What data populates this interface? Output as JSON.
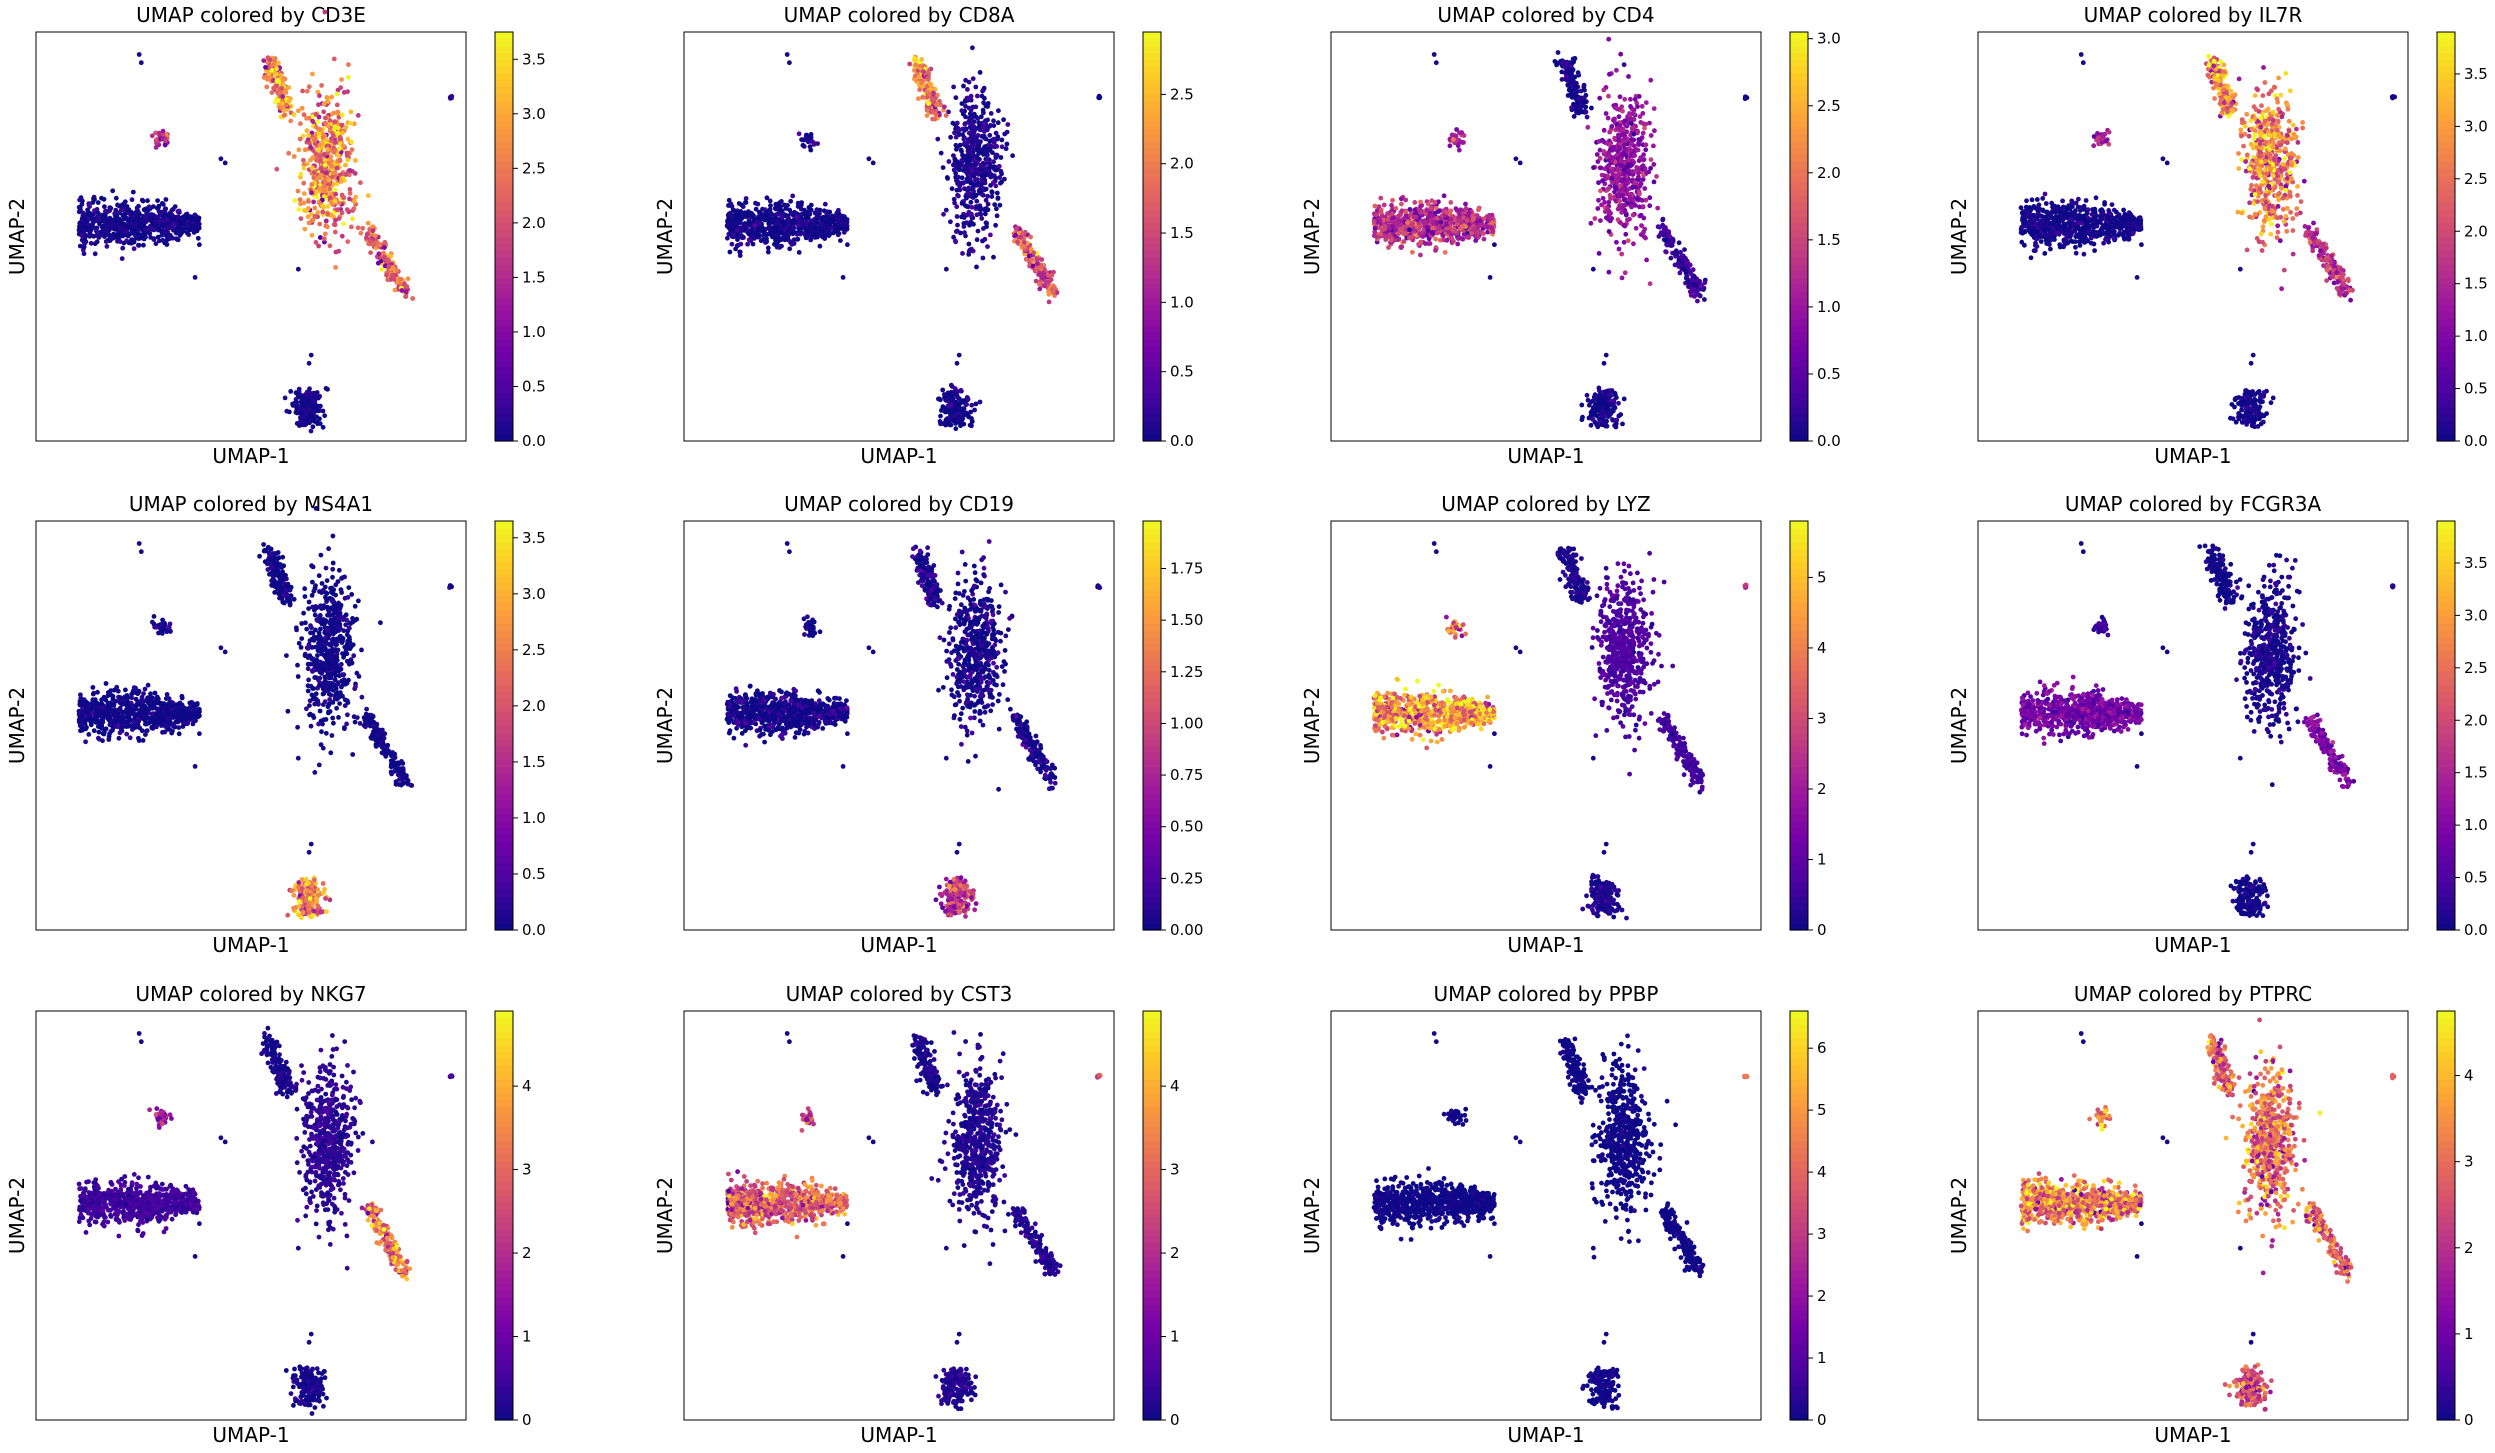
{
  "figure": {
    "x_axis_label": "UMAP-1",
    "y_axis_label": "UMAP-2",
    "colormap": "plasma",
    "colormap_stops": [
      "#0d0887",
      "#46039f",
      "#7201a8",
      "#9c179e",
      "#bd3786",
      "#d8576b",
      "#ed7953",
      "#fb9f3a",
      "#fdca26",
      "#f0f921"
    ]
  },
  "chart_data": [
    {
      "type": "scatter",
      "title": "UMAP colored by CD3E",
      "xlabel": "UMAP-1",
      "ylabel": "UMAP-2",
      "colorbar": {
        "range": [
          0,
          3.75
        ],
        "ticks": [
          "0.0",
          "0.5",
          "1.0",
          "1.5",
          "2.0",
          "2.5",
          "3.0",
          "3.5"
        ],
        "tick_values": [
          0,
          0.5,
          1,
          1.5,
          2,
          2.5,
          3,
          3.5
        ]
      },
      "expression": {
        "monocyte_cluster": 0.05,
        "t_cluster_upper": 2.6,
        "t_cluster_lower": 2.3,
        "b_cluster": 0.05,
        "top_cluster": 2.8,
        "small_cluster": 1.5,
        "platelet": 0.2
      }
    },
    {
      "type": "scatter",
      "title": "UMAP colored by CD8A",
      "xlabel": "UMAP-1",
      "ylabel": "UMAP-2",
      "colorbar": {
        "range": [
          0,
          2.95
        ],
        "ticks": [
          "0.0",
          "0.5",
          "1.0",
          "1.5",
          "2.0",
          "2.5"
        ],
        "tick_values": [
          0,
          0.5,
          1,
          1.5,
          2,
          2.5
        ]
      },
      "expression": {
        "monocyte_cluster": 0.0,
        "t_cluster_upper": 0.1,
        "t_cluster_lower": 1.6,
        "b_cluster": 0.0,
        "top_cluster": 2.0,
        "small_cluster": 0.1,
        "platelet": 0.0
      }
    },
    {
      "type": "scatter",
      "title": "UMAP colored by CD4",
      "xlabel": "UMAP-1",
      "ylabel": "UMAP-2",
      "colorbar": {
        "range": [
          0,
          3.05
        ],
        "ticks": [
          "0.0",
          "0.5",
          "1.0",
          "1.5",
          "2.0",
          "2.5",
          "3.0"
        ],
        "tick_values": [
          0,
          0.5,
          1,
          1.5,
          2,
          2.5,
          3
        ]
      },
      "expression": {
        "monocyte_cluster": 1.3,
        "t_cluster_upper": 0.9,
        "t_cluster_lower": 0.3,
        "b_cluster": 0.0,
        "top_cluster": 0.0,
        "small_cluster": 1.2,
        "platelet": 0.0
      }
    },
    {
      "type": "scatter",
      "title": "UMAP colored by IL7R",
      "xlabel": "UMAP-1",
      "ylabel": "UMAP-2",
      "colorbar": {
        "range": [
          0,
          3.9
        ],
        "ticks": [
          "0.0",
          "0.5",
          "1.0",
          "1.5",
          "2.0",
          "2.5",
          "3.0",
          "3.5"
        ],
        "tick_values": [
          0,
          0.5,
          1,
          1.5,
          2,
          2.5,
          3,
          3.5
        ]
      },
      "expression": {
        "monocyte_cluster": 0.05,
        "t_cluster_upper": 2.6,
        "t_cluster_lower": 1.6,
        "b_cluster": 0.05,
        "top_cluster": 2.8,
        "small_cluster": 1.3,
        "platelet": 0.1
      }
    },
    {
      "type": "scatter",
      "title": "UMAP colored by MS4A1",
      "xlabel": "UMAP-1",
      "ylabel": "UMAP-2",
      "colorbar": {
        "range": [
          0,
          3.65
        ],
        "ticks": [
          "0.0",
          "0.5",
          "1.0",
          "1.5",
          "2.0",
          "2.5",
          "3.0",
          "3.5"
        ],
        "tick_values": [
          0,
          0.5,
          1,
          1.5,
          2,
          2.5,
          3,
          3.5
        ]
      },
      "expression": {
        "monocyte_cluster": 0.0,
        "t_cluster_upper": 0.0,
        "t_cluster_lower": 0.0,
        "b_cluster": 2.5,
        "top_cluster": 0.0,
        "small_cluster": 0.0,
        "platelet": 0.0
      }
    },
    {
      "type": "scatter",
      "title": "UMAP colored by CD19",
      "xlabel": "UMAP-1",
      "ylabel": "UMAP-2",
      "colorbar": {
        "range": [
          0,
          1.98
        ],
        "ticks": [
          "0.00",
          "0.25",
          "0.50",
          "0.75",
          "1.00",
          "1.25",
          "1.50",
          "1.75"
        ],
        "tick_values": [
          0,
          0.25,
          0.5,
          0.75,
          1,
          1.25,
          1.5,
          1.75
        ]
      },
      "expression": {
        "monocyte_cluster": 0.0,
        "t_cluster_upper": 0.0,
        "t_cluster_lower": 0.0,
        "b_cluster": 0.9,
        "top_cluster": 0.0,
        "small_cluster": 0.0,
        "platelet": 0.0
      }
    },
    {
      "type": "scatter",
      "title": "UMAP colored by LYZ",
      "xlabel": "UMAP-1",
      "ylabel": "UMAP-2",
      "colorbar": {
        "range": [
          0,
          5.8
        ],
        "ticks": [
          "0",
          "1",
          "2",
          "3",
          "4",
          "5"
        ],
        "tick_values": [
          0,
          1,
          2,
          3,
          4,
          5
        ]
      },
      "expression": {
        "monocyte_cluster": 4.4,
        "t_cluster_upper": 0.8,
        "t_cluster_lower": 0.6,
        "b_cluster": 0.2,
        "top_cluster": 0.2,
        "small_cluster": 3.5,
        "platelet": 2.5
      }
    },
    {
      "type": "scatter",
      "title": "UMAP colored by FCGR3A",
      "xlabel": "UMAP-1",
      "ylabel": "UMAP-2",
      "colorbar": {
        "range": [
          0,
          3.9
        ],
        "ticks": [
          "0.0",
          "0.5",
          "1.0",
          "1.5",
          "2.0",
          "2.5",
          "3.0",
          "3.5"
        ],
        "tick_values": [
          0,
          0.5,
          1,
          1.5,
          2,
          2.5,
          3,
          3.5
        ]
      },
      "expression": {
        "monocyte_cluster": 0.9,
        "t_cluster_upper": 0.1,
        "t_cluster_lower": 1.0,
        "b_cluster": 0.0,
        "top_cluster": 0.0,
        "small_cluster": 0.3,
        "platelet": 0.0
      }
    },
    {
      "type": "scatter",
      "title": "UMAP colored by NKG7",
      "xlabel": "UMAP-1",
      "ylabel": "UMAP-2",
      "colorbar": {
        "range": [
          0,
          4.9
        ],
        "ticks": [
          "0",
          "1",
          "2",
          "3",
          "4"
        ],
        "tick_values": [
          0,
          1,
          2,
          3,
          4
        ]
      },
      "expression": {
        "monocyte_cluster": 0.5,
        "t_cluster_upper": 0.3,
        "t_cluster_lower": 3.3,
        "b_cluster": 0.1,
        "top_cluster": 0.1,
        "small_cluster": 1.6,
        "platelet": 0.4
      }
    },
    {
      "type": "scatter",
      "title": "UMAP colored by CST3",
      "xlabel": "UMAP-1",
      "ylabel": "UMAP-2",
      "colorbar": {
        "range": [
          0,
          4.9
        ],
        "ticks": [
          "0",
          "1",
          "2",
          "3",
          "4"
        ],
        "tick_values": [
          0,
          1,
          2,
          3,
          4
        ]
      },
      "expression": {
        "monocyte_cluster": 2.9,
        "t_cluster_upper": 0.2,
        "t_cluster_lower": 0.2,
        "b_cluster": 0.2,
        "top_cluster": 0.1,
        "small_cluster": 2.4,
        "platelet": 2.5
      }
    },
    {
      "type": "scatter",
      "title": "UMAP colored by PPBP",
      "xlabel": "UMAP-1",
      "ylabel": "UMAP-2",
      "colorbar": {
        "range": [
          0,
          6.6
        ],
        "ticks": [
          "0",
          "1",
          "2",
          "3",
          "4",
          "5",
          "6"
        ],
        "tick_values": [
          0,
          1,
          2,
          3,
          4,
          5,
          6
        ]
      },
      "expression": {
        "monocyte_cluster": 0.0,
        "t_cluster_upper": 0.0,
        "t_cluster_lower": 0.0,
        "b_cluster": 0.0,
        "top_cluster": 0.0,
        "small_cluster": 0.0,
        "platelet": 6.0
      }
    },
    {
      "type": "scatter",
      "title": "UMAP colored by PTPRC",
      "xlabel": "UMAP-1",
      "ylabel": "UMAP-2",
      "colorbar": {
        "range": [
          0,
          4.75
        ],
        "ticks": [
          "0",
          "1",
          "2",
          "3",
          "4"
        ],
        "tick_values": [
          0,
          1,
          2,
          3,
          4
        ]
      },
      "expression": {
        "monocyte_cluster": 3.3,
        "t_cluster_upper": 3.0,
        "t_cluster_lower": 2.9,
        "b_cluster": 2.6,
        "top_cluster": 2.8,
        "small_cluster": 3.4,
        "platelet": 2.3
      }
    }
  ]
}
